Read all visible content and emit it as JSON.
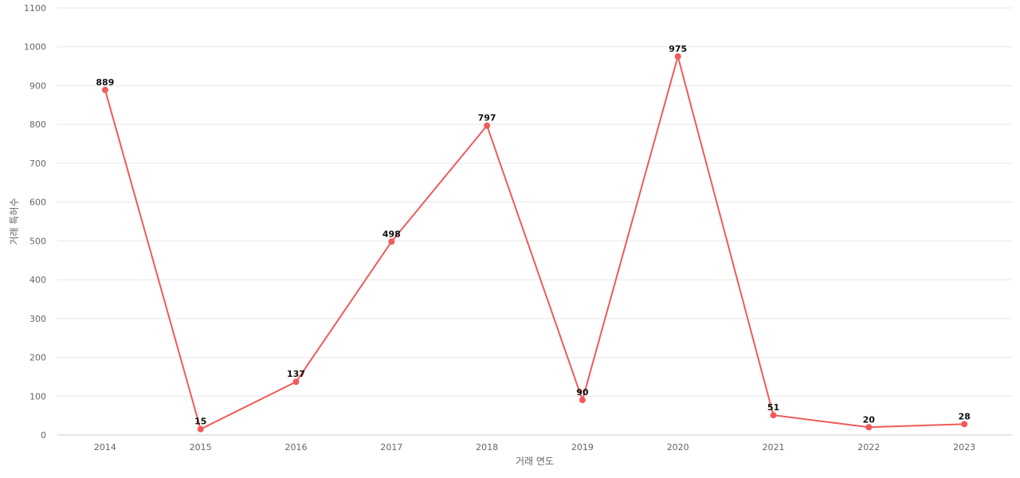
{
  "chart_data": {
    "type": "line",
    "title": "",
    "xlabel": "거래 연도",
    "ylabel": "거래 특허수",
    "categories": [
      "2014",
      "2015",
      "2016",
      "2017",
      "2018",
      "2019",
      "2020",
      "2021",
      "2022",
      "2023"
    ],
    "series": [
      {
        "values": [
          889,
          15,
          137,
          498,
          797,
          90,
          975,
          51,
          20,
          28
        ]
      }
    ],
    "ylim": [
      0,
      1100
    ],
    "yticks": [
      0,
      100,
      200,
      300,
      400,
      500,
      600,
      700,
      800,
      900,
      1000,
      1100
    ],
    "grid": true,
    "legend": "none",
    "colors": {
      "line": "#ef5a5a",
      "grid": "#e6e6e6",
      "text": "#666666"
    }
  }
}
